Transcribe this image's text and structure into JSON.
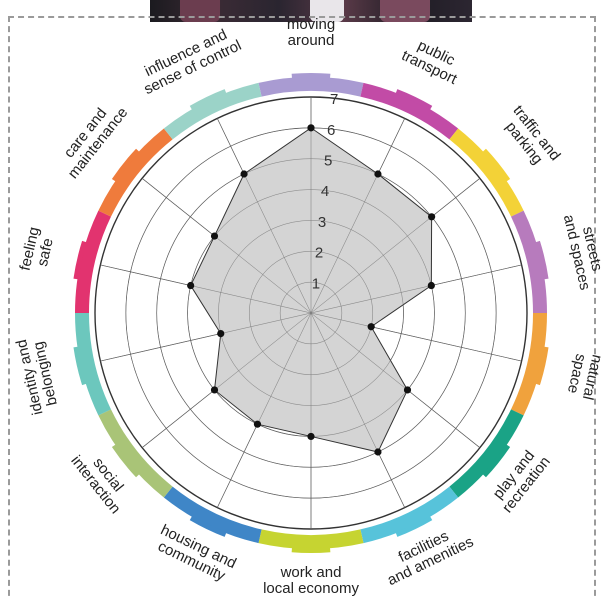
{
  "chart_data": {
    "type": "radar",
    "title": "",
    "rlim": [
      0,
      7
    ],
    "r_ticks": [
      "1",
      "2",
      "3",
      "4",
      "5",
      "6",
      "7"
    ],
    "categories": [
      {
        "lines": [
          "moving",
          "around"
        ],
        "color": "#a99bd2"
      },
      {
        "lines": [
          "public",
          "transport"
        ],
        "color": "#c24ba6"
      },
      {
        "lines": [
          "traffic and",
          "parking"
        ],
        "color": "#f3d237"
      },
      {
        "lines": [
          "streets",
          "and spaces"
        ],
        "color": "#b77bbd"
      },
      {
        "lines": [
          "natural",
          "space"
        ],
        "color": "#f0a23d"
      },
      {
        "lines": [
          "play and",
          "recreation"
        ],
        "color": "#1aa386"
      },
      {
        "lines": [
          "facilities",
          "and amenities"
        ],
        "color": "#57c3da"
      },
      {
        "lines": [
          "work and",
          "local economy"
        ],
        "color": "#c6d431"
      },
      {
        "lines": [
          "housing and",
          "community"
        ],
        "color": "#3f86c7"
      },
      {
        "lines": [
          "social",
          "interaction"
        ],
        "color": "#a9c477"
      },
      {
        "lines": [
          "identity and",
          "belonging"
        ],
        "color": "#6cc7bd"
      },
      {
        "lines": [
          "feeling",
          "safe"
        ],
        "color": "#e2336f"
      },
      {
        "lines": [
          "care and",
          "maintenance"
        ],
        "color": "#ef7b3c"
      },
      {
        "lines": [
          "influence and",
          "sense of control"
        ],
        "color": "#9bd3c8"
      }
    ],
    "values": [
      6,
      5,
      5,
      4,
      2,
      4,
      5,
      4,
      4,
      4,
      3,
      4,
      4,
      5
    ],
    "grid": true,
    "fill_color": "#cccccc",
    "line_color": "#333333"
  }
}
